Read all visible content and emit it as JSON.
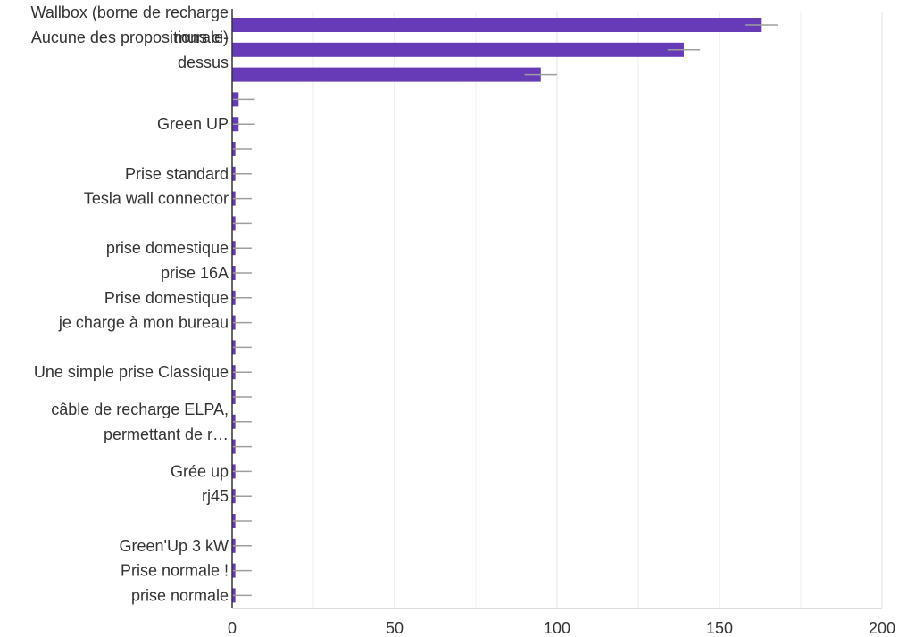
{
  "chart_data": {
    "type": "bar",
    "orientation": "horizontal",
    "title": "",
    "xlabel": "",
    "ylabel": "",
    "xlim": [
      0,
      200
    ],
    "x_ticks": [
      "0",
      "50",
      "100",
      "150",
      "200"
    ],
    "grid": true,
    "legend": "none",
    "bar_color": "#673ab7",
    "error_color": "#9e9e9e",
    "categories": [
      [
        "Wallbox (borne de recharge",
        "murale)"
      ],
      [
        "Aucune des propositions ci-",
        "dessus"
      ],
      [
        ""
      ],
      [
        ""
      ],
      [
        "Green UP"
      ],
      [
        ""
      ],
      [
        "Prise standard"
      ],
      [
        "Tesla wall connector"
      ],
      [
        ""
      ],
      [
        "prise domestique"
      ],
      [
        "prise 16A"
      ],
      [
        "Prise domestique"
      ],
      [
        "je charge à mon bureau"
      ],
      [
        ""
      ],
      [
        "Une simple prise Classique"
      ],
      [
        ""
      ],
      [
        "câble de recharge ELPA,",
        "permettant de r…"
      ],
      [
        ""
      ],
      [
        "Grée up"
      ],
      [
        "rj45"
      ],
      [
        ""
      ],
      [
        "Green'Up 3 kW"
      ],
      [
        "Prise normale !"
      ],
      [
        "prise normale"
      ]
    ],
    "values": [
      163,
      139,
      95,
      2,
      2,
      1,
      1,
      1,
      1,
      1,
      1,
      1,
      1,
      1,
      1,
      1,
      1,
      1,
      1,
      1,
      1,
      1,
      1,
      1
    ],
    "error": [
      5,
      5,
      5,
      5,
      5,
      5,
      5,
      5,
      5,
      5,
      5,
      5,
      5,
      5,
      5,
      5,
      5,
      5,
      5,
      5,
      5,
      5,
      5,
      5
    ]
  }
}
